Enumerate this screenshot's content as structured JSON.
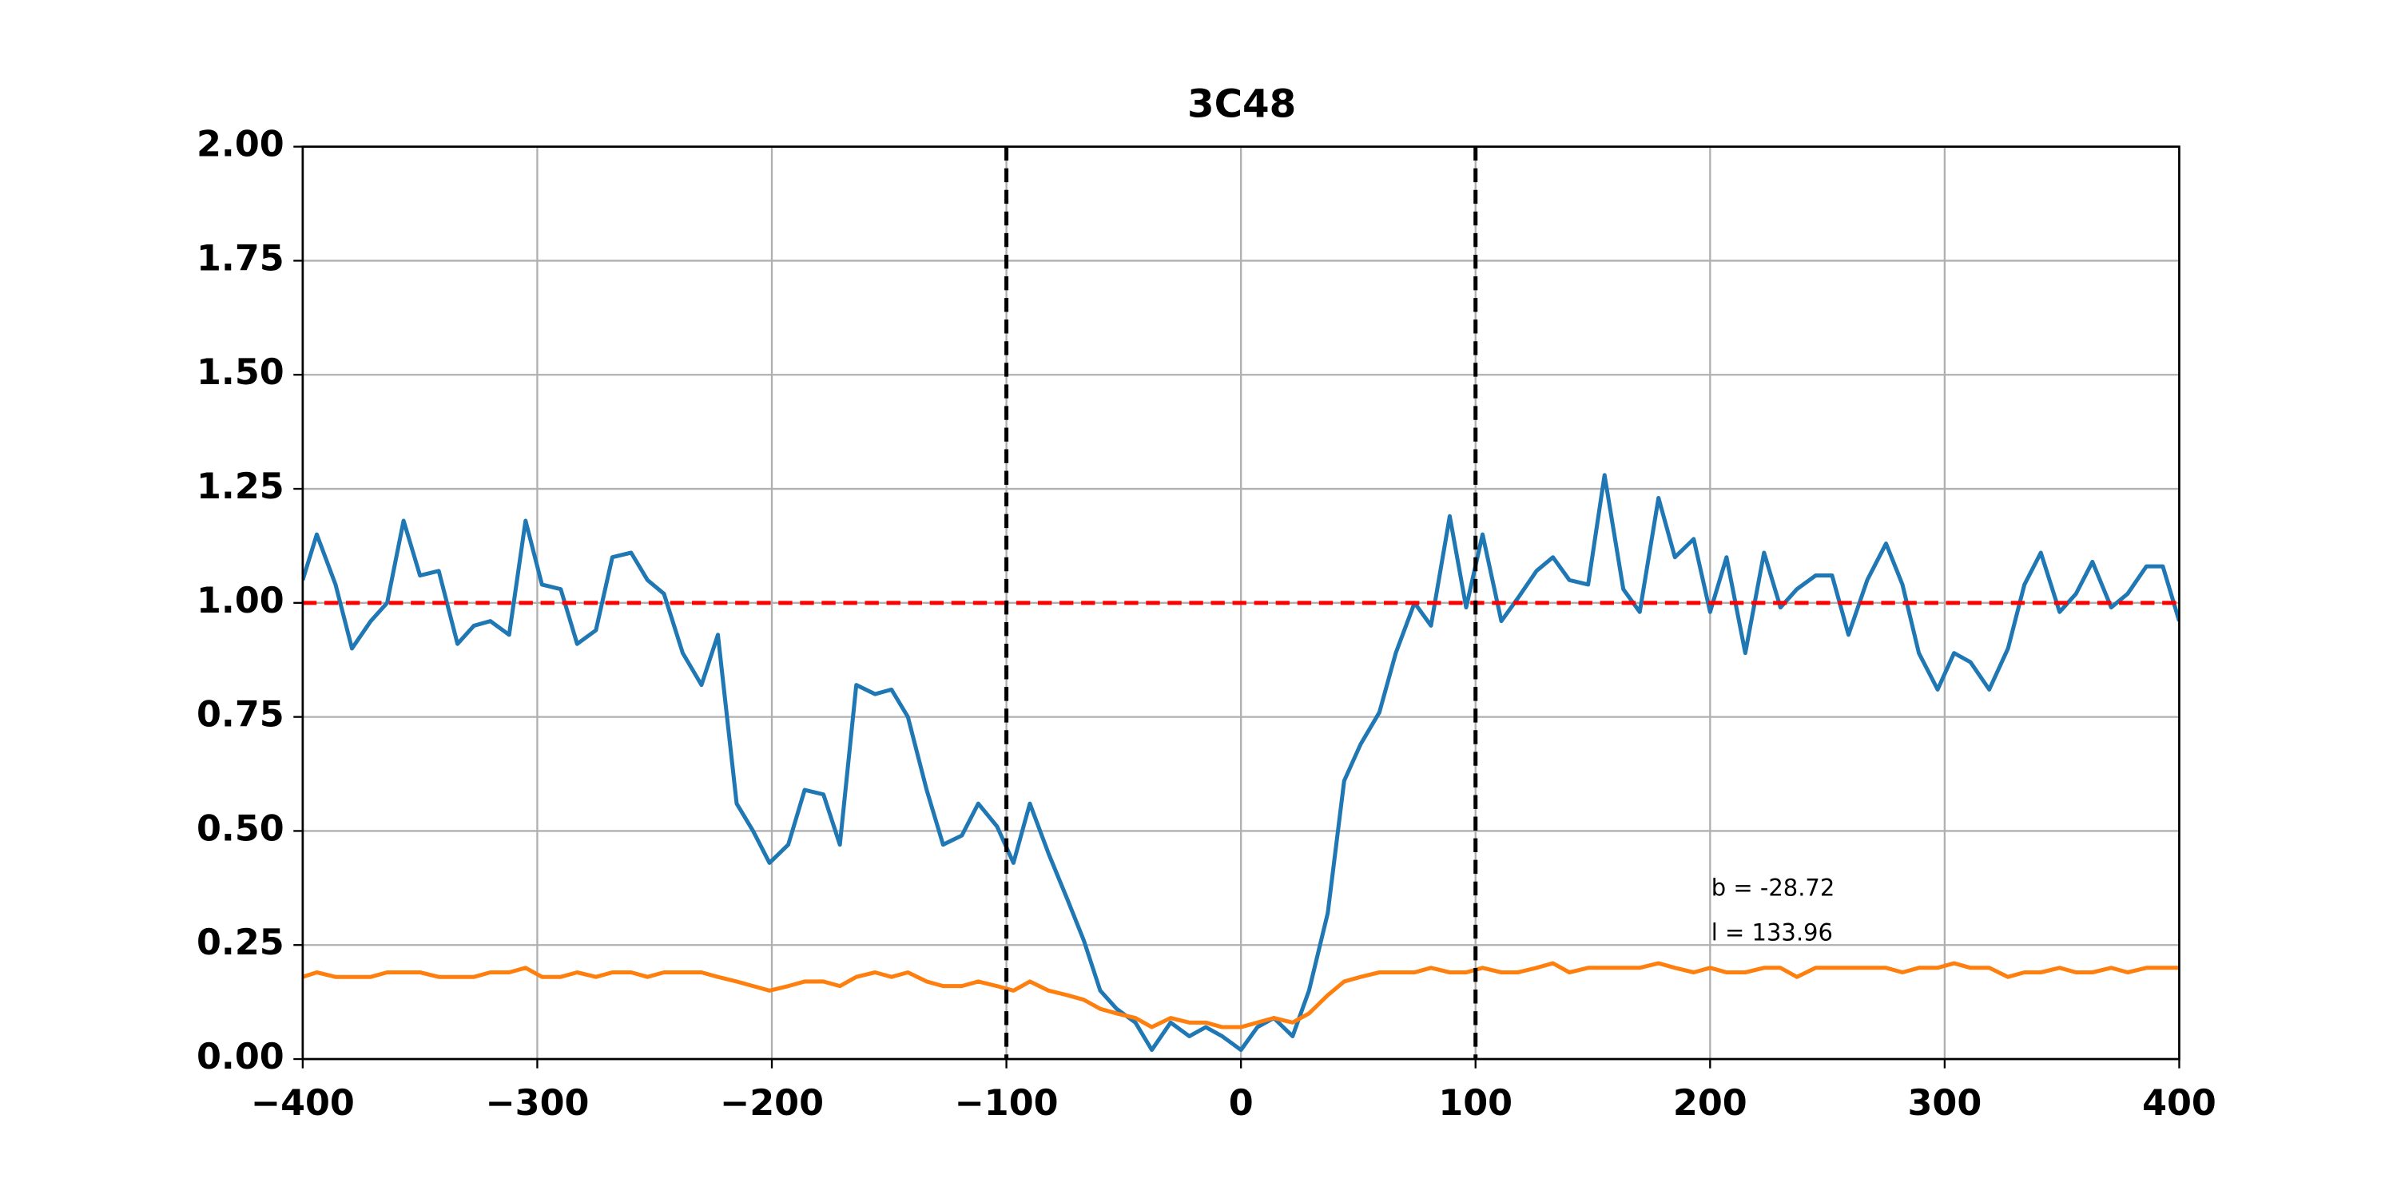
{
  "chart_data": {
    "type": "line",
    "title": "3C48",
    "x": [
      -400,
      -394,
      -386,
      -379,
      -371,
      -364,
      -357,
      -350,
      -342,
      -334,
      -327,
      -320,
      -312,
      -305,
      -298,
      -290,
      -283,
      -275,
      -268,
      -260,
      -253,
      -246,
      -238,
      -230,
      -223,
      -215,
      -208,
      -201,
      -193,
      -186,
      -178,
      -171,
      -164,
      -156,
      -149,
      -142,
      -134,
      -127,
      -119,
      -112,
      -104,
      -97,
      -90,
      -82,
      -74,
      -67,
      -60,
      -53,
      -45,
      -38,
      -30,
      -22,
      -15,
      -8,
      0,
      7,
      14,
      22,
      29,
      37,
      44,
      51,
      59,
      66,
      74,
      81,
      89,
      96,
      103,
      111,
      118,
      126,
      133,
      140,
      148,
      155,
      163,
      170,
      178,
      185,
      193,
      200,
      207,
      215,
      223,
      230,
      237,
      245,
      252,
      259,
      267,
      275,
      282,
      289,
      297,
      304,
      311,
      319,
      327,
      334,
      341,
      349,
      356,
      363,
      371,
      378,
      386,
      393,
      400
    ],
    "series": [
      {
        "color": "#1f77b4",
        "values": [
          1.05,
          1.15,
          1.04,
          0.9,
          0.96,
          1.0,
          1.18,
          1.06,
          1.07,
          0.91,
          0.95,
          0.96,
          0.93,
          1.18,
          1.04,
          1.03,
          0.91,
          0.94,
          1.1,
          1.11,
          1.05,
          1.02,
          0.89,
          0.82,
          0.93,
          0.56,
          0.5,
          0.43,
          0.47,
          0.59,
          0.58,
          0.47,
          0.82,
          0.8,
          0.81,
          0.75,
          0.59,
          0.47,
          0.49,
          0.56,
          0.51,
          0.43,
          0.56,
          0.45,
          0.35,
          0.26,
          0.15,
          0.11,
          0.08,
          0.02,
          0.08,
          0.05,
          0.07,
          0.05,
          0.02,
          0.07,
          0.09,
          0.05,
          0.15,
          0.32,
          0.61,
          0.69,
          0.76,
          0.89,
          1.0,
          0.95,
          1.19,
          0.99,
          1.15,
          0.96,
          1.01,
          1.07,
          1.1,
          1.05,
          1.04,
          1.28,
          1.03,
          0.98,
          1.23,
          1.1,
          1.14,
          0.98,
          1.1,
          0.89,
          1.11,
          0.99,
          1.03,
          1.06,
          1.06,
          0.93,
          1.05,
          1.13,
          1.04,
          0.89,
          0.81,
          0.89,
          0.87,
          0.81,
          0.9,
          1.04,
          1.11,
          0.98,
          1.02,
          1.09,
          0.99,
          1.02,
          1.08,
          1.08,
          0.96
        ]
      },
      {
        "color": "#ff7f0e",
        "values": [
          0.18,
          0.19,
          0.18,
          0.18,
          0.18,
          0.19,
          0.19,
          0.19,
          0.18,
          0.18,
          0.18,
          0.19,
          0.19,
          0.2,
          0.18,
          0.18,
          0.19,
          0.18,
          0.19,
          0.19,
          0.18,
          0.19,
          0.19,
          0.19,
          0.18,
          0.17,
          0.16,
          0.15,
          0.16,
          0.17,
          0.17,
          0.16,
          0.18,
          0.19,
          0.18,
          0.19,
          0.17,
          0.16,
          0.16,
          0.17,
          0.16,
          0.15,
          0.17,
          0.15,
          0.14,
          0.13,
          0.11,
          0.1,
          0.09,
          0.07,
          0.09,
          0.08,
          0.08,
          0.07,
          0.07,
          0.08,
          0.09,
          0.08,
          0.1,
          0.14,
          0.17,
          0.18,
          0.19,
          0.19,
          0.19,
          0.2,
          0.19,
          0.19,
          0.2,
          0.19,
          0.19,
          0.2,
          0.21,
          0.19,
          0.2,
          0.2,
          0.2,
          0.2,
          0.21,
          0.2,
          0.19,
          0.2,
          0.19,
          0.19,
          0.2,
          0.2,
          0.18,
          0.2,
          0.2,
          0.2,
          0.2,
          0.2,
          0.19,
          0.2,
          0.2,
          0.21,
          0.2,
          0.2,
          0.18,
          0.19,
          0.19,
          0.2,
          0.19,
          0.19,
          0.2,
          0.19,
          0.2,
          0.2,
          0.2
        ]
      }
    ],
    "xlim": [
      -400,
      400
    ],
    "ylim": [
      0,
      2
    ],
    "xticks": [
      {
        "value": -400,
        "label": "−400"
      },
      {
        "value": -300,
        "label": "−300"
      },
      {
        "value": -200,
        "label": "−200"
      },
      {
        "value": -100,
        "label": "−100"
      },
      0,
      100,
      200,
      300,
      400
    ],
    "yticks": [
      {
        "value": 0,
        "label": "0.00"
      },
      {
        "value": 0.25,
        "label": "0.25"
      },
      {
        "value": 0.5,
        "label": "0.50"
      },
      {
        "value": 0.75,
        "label": "0.75"
      },
      {
        "value": 1,
        "label": "1.00"
      },
      {
        "value": 1.25,
        "label": "1.25"
      },
      {
        "value": 1.5,
        "label": "1.50"
      },
      {
        "value": 1.75,
        "label": "1.75"
      },
      {
        "value": 2,
        "label": "2.00"
      }
    ],
    "grid": true,
    "hlines": [
      {
        "value": 1,
        "color": "#ff0000"
      }
    ],
    "vlines": [
      {
        "value": -100,
        "color": "#000000"
      },
      {
        "value": 100,
        "color": "#000000"
      }
    ],
    "annotations": [
      "b = -28.72",
      "l = 133.96"
    ]
  }
}
